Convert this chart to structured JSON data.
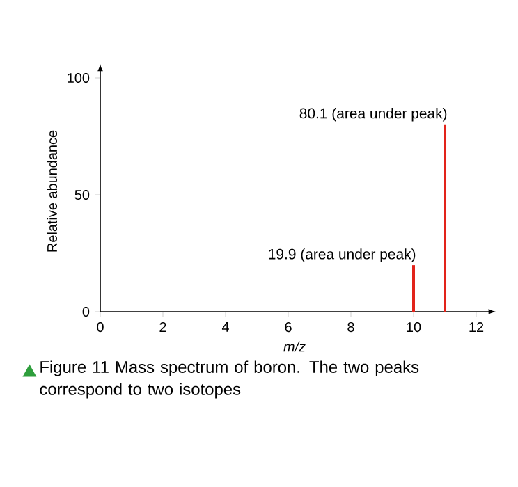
{
  "chart_data": {
    "type": "bar",
    "x": [
      10,
      11
    ],
    "values": [
      19.9,
      80.1
    ],
    "color": "#e2231a",
    "xlim": [
      0,
      12.4
    ],
    "ylim": [
      0,
      103
    ],
    "xticks": [
      0,
      2,
      4,
      6,
      8,
      10,
      12
    ],
    "yticks": [
      0,
      50,
      100
    ],
    "xlabel": "m/z",
    "ylabel": "Relative abundance",
    "annotations": [
      {
        "text": "19.9 (area under peak)",
        "x": 10,
        "y": 19.9
      },
      {
        "text": "80.1 (area under peak)",
        "x": 11,
        "y": 80.1
      },
      "Figure 11 Mass spectrum of boron. The two peaks correspond to two isotopes"
    ]
  }
}
